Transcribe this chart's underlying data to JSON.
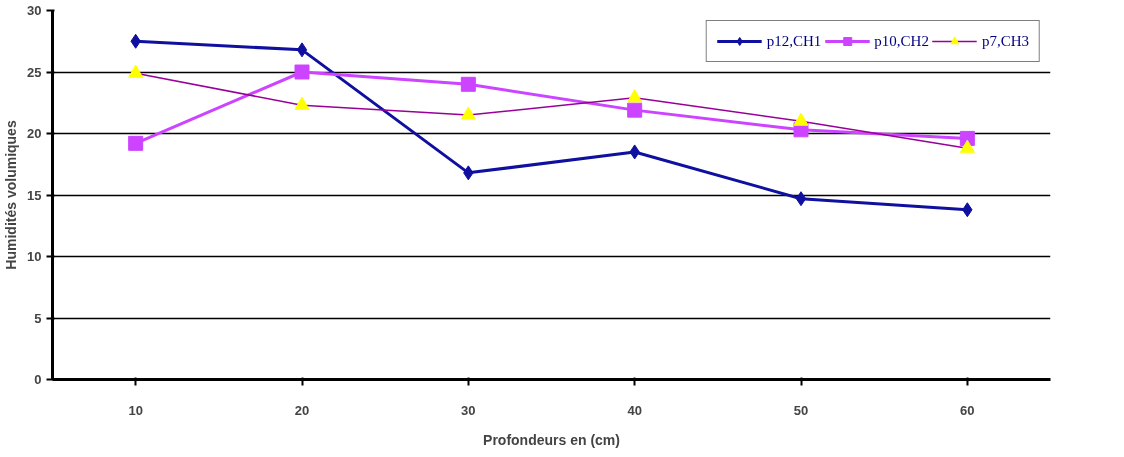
{
  "chart_data": {
    "type": "line",
    "xlabel": "Profondeurs en (cm)",
    "ylabel": "Humidités volumiques",
    "categories": [
      "10",
      "20",
      "30",
      "40",
      "50",
      "60"
    ],
    "series": [
      {
        "name": "p12,CH1",
        "color": "#1010a0",
        "marker": "diamond",
        "values": [
          27.5,
          26.8,
          16.8,
          18.5,
          14.7,
          13.8
        ]
      },
      {
        "name": "p10,CH2",
        "color": "#cc44ff",
        "marker": "square",
        "values": [
          19.2,
          25.0,
          24.0,
          21.9,
          20.3,
          19.6
        ]
      },
      {
        "name": "p7,CH3",
        "color": "#990099",
        "colors": [
          "#ffff00",
          "#ffff00",
          "#ffff00",
          "#ffff00",
          "#ffff00",
          "#ffff00"
        ],
        "marker": "triangle",
        "values": [
          24.9,
          22.3,
          21.5,
          22.9,
          21.0,
          18.8
        ]
      }
    ],
    "ylim": [
      0,
      30
    ],
    "yticks": [
      0,
      5,
      10,
      15,
      20,
      25,
      30
    ],
    "grid": "y",
    "legend": "top right"
  }
}
